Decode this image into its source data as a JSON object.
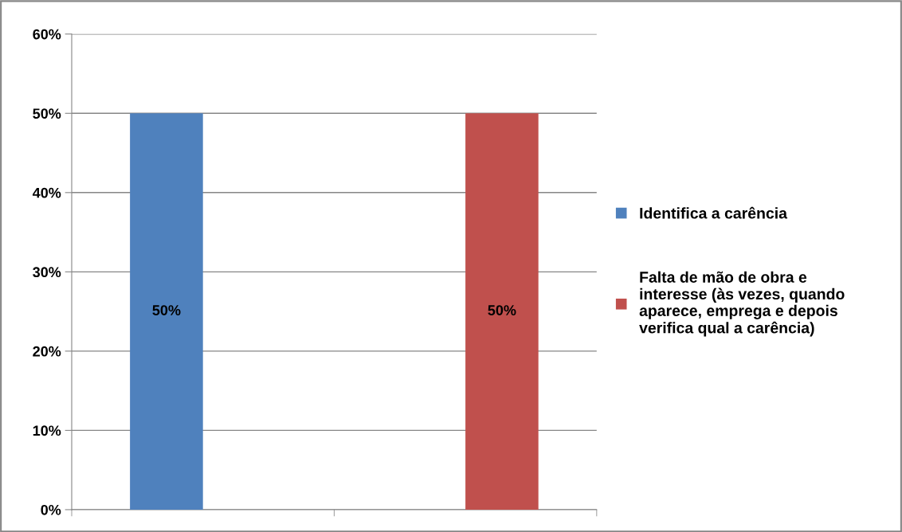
{
  "chart_data": {
    "type": "bar",
    "categories": [
      null,
      null
    ],
    "series": [
      {
        "name": "Identifica a carência",
        "color": "#4f81bd",
        "values": [
          50,
          null
        ],
        "value_labels": [
          "50%",
          null
        ]
      },
      {
        "name": "Falta de mão de obra e interesse (às vezes, quando aparece, emprega e depois verifica qual a carência)",
        "color": "#c0504d",
        "values": [
          null,
          50
        ],
        "value_labels": [
          null,
          "50%"
        ]
      }
    ],
    "ylim": [
      0,
      60
    ],
    "yticks": [
      {
        "value": 0,
        "label": "0%"
      },
      {
        "value": 10,
        "label": "10%"
      },
      {
        "value": 20,
        "label": "20%"
      },
      {
        "value": 30,
        "label": "30%"
      },
      {
        "value": 40,
        "label": "40%"
      },
      {
        "value": 50,
        "label": "50%"
      },
      {
        "value": 60,
        "label": "60%"
      }
    ],
    "grid": "y",
    "legend": "right"
  }
}
